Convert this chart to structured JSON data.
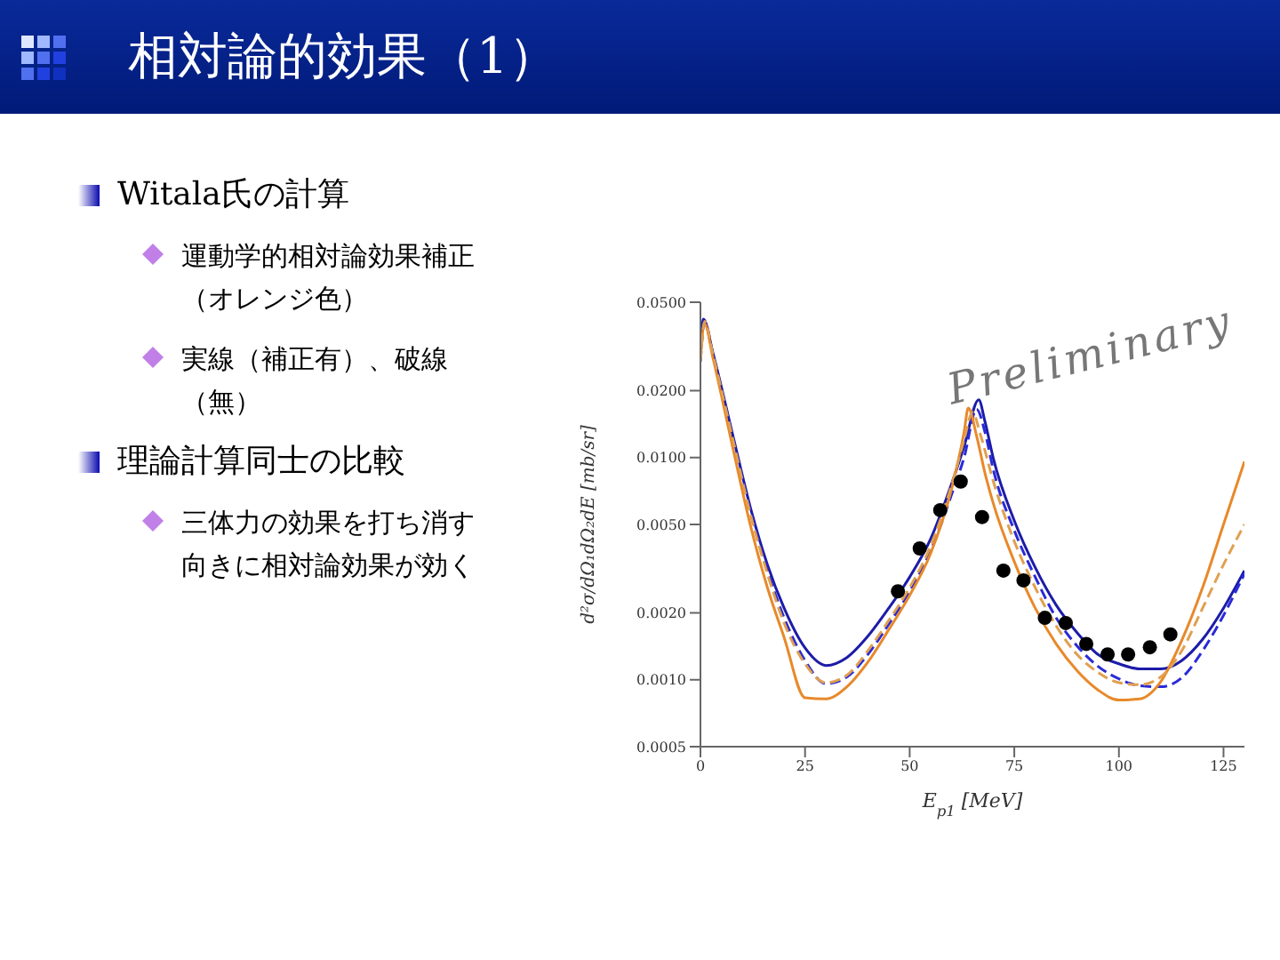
{
  "chart_data": {
    "type": "line",
    "title": "相対論的効果（1）",
    "annotations": [
      "Witala氏の計算",
      "運動学的相対論効果補正（オレンジ色）",
      "実線（補正有）、破線（無）",
      "理論計算同士の比較",
      "三体力の効果を打ち消す向きに相対論効果が効く",
      "Preliminary"
    ],
    "xlabel": "E$_{p1}$ [MeV]",
    "ylabel": "d²σ/dΩ₁dΩ₂dE [mb/sr]",
    "log": "y",
    "xlim": [
      0,
      130
    ],
    "xticks": [
      0,
      25,
      50,
      75,
      100,
      125
    ],
    "ylim": [
      0.0005,
      0.05
    ],
    "yticks": [
      {
        "value": 0.0005,
        "label": "0.0005"
      },
      {
        "value": 0.001,
        "label": "0.0010"
      },
      {
        "value": 0.002,
        "label": "0.0020"
      },
      {
        "value": 0.005,
        "label": "0.0050"
      },
      {
        "value": 0.01,
        "label": "0.0100"
      },
      {
        "value": 0.02,
        "label": "0.0200"
      },
      {
        "value": 0.05,
        "label": "0.0500"
      }
    ],
    "grid": false,
    "series": [
      {
        "type": "line",
        "color": "#1c1ca8",
        "line_style": "solid",
        "x": [
          0,
          0.7,
          3,
          8,
          12,
          16,
          20,
          25,
          30,
          35,
          40,
          45,
          50,
          55,
          60,
          63,
          66.5,
          68,
          70,
          75,
          80,
          85,
          90,
          95,
          100,
          105,
          110,
          115,
          120,
          125,
          130
        ],
        "values": [
          0.0277,
          0.042,
          0.0295,
          0.012,
          0.0059,
          0.0033,
          0.0021,
          0.00139,
          0.00116,
          0.00126,
          0.00157,
          0.0021,
          0.0029,
          0.0043,
          0.0076,
          0.0112,
          0.0182,
          0.0145,
          0.0099,
          0.0052,
          0.0032,
          0.00217,
          0.00163,
          0.0013,
          0.00118,
          0.00112,
          0.00112,
          0.00122,
          0.00152,
          0.0021,
          0.0031
        ]
      },
      {
        "type": "line",
        "color": "#2a2ad8",
        "line_style": "dashed",
        "x": [
          0,
          1,
          3,
          8,
          12,
          16,
          20,
          25,
          30,
          35,
          40,
          45,
          50,
          55,
          60,
          63,
          66,
          68,
          70,
          75,
          80,
          85,
          90,
          95,
          100,
          105,
          110,
          115,
          120,
          125,
          130
        ],
        "values": [
          0.027,
          0.041,
          0.029,
          0.0117,
          0.0057,
          0.0031,
          0.0019,
          0.00122,
          0.00096,
          0.00103,
          0.0013,
          0.00178,
          0.0025,
          0.0038,
          0.0068,
          0.01,
          0.0165,
          0.013,
          0.0088,
          0.0047,
          0.0029,
          0.0019,
          0.00142,
          0.00115,
          0.00101,
          0.00094,
          0.00093,
          0.00102,
          0.00135,
          0.00195,
          0.003
        ]
      },
      {
        "type": "line",
        "color": "#e8892a",
        "line_style": "solid",
        "x": [
          0,
          1,
          3,
          8,
          12,
          16,
          20,
          25,
          30,
          35,
          40,
          45,
          50,
          55,
          60,
          63,
          64,
          66,
          68,
          70,
          75,
          80,
          85,
          90,
          95,
          100,
          105,
          110,
          115,
          120,
          125,
          130
        ],
        "values": [
          0.028,
          0.04,
          0.028,
          0.0105,
          0.0049,
          0.0026,
          0.00155,
          0.00083,
          0.00082,
          0.00093,
          0.0012,
          0.00168,
          0.0024,
          0.0037,
          0.0072,
          0.013,
          0.0167,
          0.0125,
          0.0085,
          0.0062,
          0.0034,
          0.0021,
          0.00145,
          0.0011,
          0.0009,
          0.00081,
          0.00082,
          0.00098,
          0.0015,
          0.0026,
          0.005,
          0.0096
        ]
      },
      {
        "type": "line",
        "color": "#e0a050",
        "line_style": "dashed",
        "x": [
          0,
          1,
          3,
          8,
          12,
          16,
          20,
          25,
          30,
          35,
          40,
          45,
          50,
          55,
          60,
          63,
          65,
          67,
          70,
          75,
          80,
          85,
          90,
          95,
          100,
          105,
          110,
          115,
          120,
          125,
          130
        ],
        "values": [
          0.027,
          0.041,
          0.029,
          0.0115,
          0.0055,
          0.003,
          0.0018,
          0.00118,
          0.00097,
          0.00105,
          0.00135,
          0.00185,
          0.0026,
          0.004,
          0.0075,
          0.012,
          0.016,
          0.0125,
          0.0078,
          0.0042,
          0.0026,
          0.00175,
          0.0013,
          0.00108,
          0.00097,
          0.00095,
          0.00103,
          0.00135,
          0.0021,
          0.0033,
          0.005
        ]
      },
      {
        "type": "scatter",
        "color": "#000000",
        "marker": "circle",
        "x": [
          47.2,
          52.4,
          57.3,
          62.2,
          67.3,
          72.4,
          77.2,
          82.3,
          87.3,
          92.2,
          97.3,
          102.2,
          107.4,
          112.3
        ],
        "values": [
          0.0025,
          0.0039,
          0.0058,
          0.0078,
          0.0054,
          0.0031,
          0.0028,
          0.0019,
          0.0018,
          0.00145,
          0.0013,
          0.0013,
          0.0014,
          0.0016
        ]
      }
    ]
  }
}
